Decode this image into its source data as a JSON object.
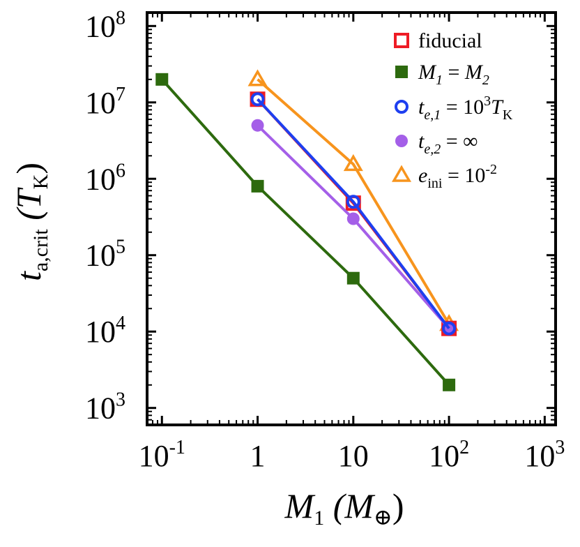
{
  "chart_data": {
    "type": "line",
    "xscale": "log",
    "yscale": "log",
    "xlim": [
      0.07,
      1300
    ],
    "ylim": [
      600,
      150000000
    ],
    "x_ticks": [
      {
        "value": 0.1,
        "base": "10",
        "exp": "-1"
      },
      {
        "value": 1,
        "base": "1",
        "exp": ""
      },
      {
        "value": 10,
        "base": "10",
        "exp": ""
      },
      {
        "value": 100,
        "base": "10",
        "exp": "2"
      },
      {
        "value": 1000,
        "base": "10",
        "exp": "3"
      }
    ],
    "y_ticks": [
      {
        "value": 1000,
        "base": "10",
        "exp": "3"
      },
      {
        "value": 10000,
        "base": "10",
        "exp": "4"
      },
      {
        "value": 100000,
        "base": "10",
        "exp": "5"
      },
      {
        "value": 1000000,
        "base": "10",
        "exp": "6"
      },
      {
        "value": 10000000,
        "base": "10",
        "exp": "7"
      },
      {
        "value": 100000000,
        "base": "10",
        "exp": "8"
      }
    ],
    "xlabel": {
      "main": "M",
      "sub": "1",
      "unit_open": "(M",
      "unit_sub": "⊕",
      "unit_close": ")"
    },
    "ylabel": {
      "main": "t",
      "sub": "a,crit",
      "unit_open": "(T",
      "unit_sub": "K",
      "unit_close": ")"
    },
    "series": [
      {
        "id": "equal",
        "color": "#2d6a0e",
        "marker": "square-filled",
        "x": [
          0.1,
          1,
          10,
          100
        ],
        "y": [
          20000000,
          800000,
          50000,
          2000
        ]
      },
      {
        "id": "ini",
        "color": "#f7941d",
        "marker": "triangle-open",
        "x": [
          1,
          10,
          100
        ],
        "y": [
          20000000,
          1550000,
          12500
        ]
      },
      {
        "id": "fid",
        "color": "#ee1c25",
        "marker": "square-open",
        "x": [
          1,
          10,
          100
        ],
        "y": [
          11000000,
          480000,
          11000
        ]
      },
      {
        "id": "te2",
        "color": "#a45fe8",
        "marker": "circle-filled",
        "x": [
          1,
          10,
          100
        ],
        "y": [
          5000000,
          300000,
          11000
        ]
      },
      {
        "id": "te1",
        "color": "#1e3ff0",
        "marker": "circle-open",
        "x": [
          1,
          10,
          100
        ],
        "y": [
          11000000,
          500000,
          11000
        ]
      }
    ],
    "legend": {
      "position": "top-right",
      "entries": [
        {
          "series": "fid",
          "color": "#ee1c25",
          "marker": "square-open",
          "text": "fiducial"
        },
        {
          "series": "equal",
          "color": "#2d6a0e",
          "marker": "square-filled",
          "a": "M",
          "a_sub": "1",
          "mid": " = ",
          "b": "M",
          "b_sub": "2"
        },
        {
          "series": "te1",
          "color": "#1e3ff0",
          "marker": "circle-open",
          "a": "t",
          "a_sub": "e,1",
          "mid": " = 10",
          "sup": "3",
          "b": "T",
          "b_sub": "K"
        },
        {
          "series": "te2",
          "color": "#a45fe8",
          "marker": "circle-filled",
          "a": "t",
          "a_sub": "e,2",
          "mid": " = ∞"
        },
        {
          "series": "ini",
          "color": "#f7941d",
          "marker": "triangle-open",
          "a": "e",
          "a_sub": "ini",
          "mid": " = 10",
          "sup": "-2"
        }
      ]
    }
  }
}
